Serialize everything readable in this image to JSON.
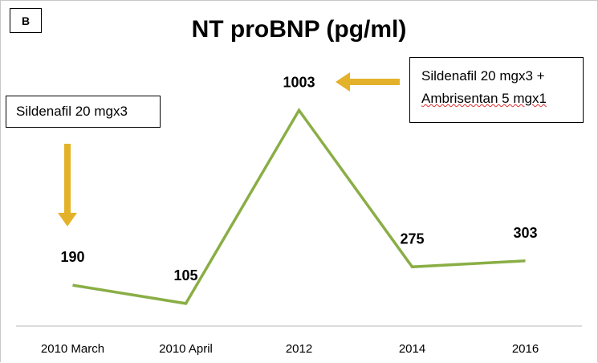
{
  "panel_label": "B",
  "annotations": {
    "note1": "Sildenafil 20 mgx3",
    "note2_line1": "Sildenafil 20 mgx3 +",
    "note2_line2": "Ambrisentan 5 mgx1"
  },
  "colors": {
    "line": "#8aae46",
    "arrow": "#e3b22a",
    "axis": "#d0d0d0"
  },
  "chart_data": {
    "type": "line",
    "title": "NT proBNP (pg/ml)",
    "categories": [
      "2010 March",
      "2010 April",
      "2012",
      "2014",
      "2016"
    ],
    "series": [
      {
        "values": [
          190,
          105,
          1003,
          275,
          303
        ]
      }
    ],
    "data_labels": [
      "190",
      "105",
      "1003",
      "275",
      "303"
    ],
    "ylim": [
      0,
      1120
    ],
    "grid": false,
    "legend": "none"
  }
}
